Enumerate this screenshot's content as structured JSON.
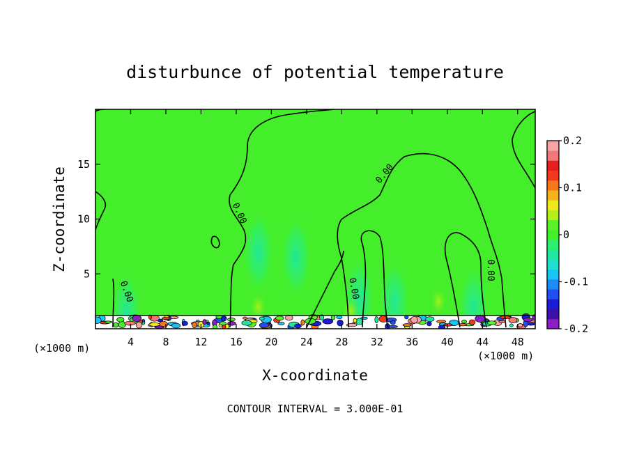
{
  "chart_data": {
    "type": "heatmap",
    "title": "disturbunce of potential temperature",
    "xlabel": "X-coordinate",
    "ylabel": "Z-coordinate",
    "x_unit_left": "(×1000 m)",
    "x_unit_right": "(×1000 m)",
    "xlim": [
      0,
      50
    ],
    "ylim": [
      0,
      20
    ],
    "x_ticks": [
      4,
      8,
      12,
      16,
      20,
      24,
      28,
      32,
      36,
      40,
      44,
      48
    ],
    "y_ticks": [
      5,
      10,
      15
    ],
    "colorbar": {
      "min": -0.2,
      "max": 0.2,
      "ticks": [
        -0.2,
        -0.1,
        0,
        0.1,
        0.2
      ],
      "tick_labels": [
        "-0.2",
        "-0.1",
        "0",
        "0.1",
        "0.2"
      ],
      "colors": [
        "#8b1fbf",
        "#3a12a8",
        "#1c1cd6",
        "#1f4ff0",
        "#1f8af5",
        "#19c4f5",
        "#1fe0d0",
        "#1fe6a0",
        "#2ef070",
        "#44ee2a",
        "#5cf028",
        "#b4f01a",
        "#f0e81a",
        "#f6b41a",
        "#f6781a",
        "#f23a1a",
        "#e61e1e",
        "#f07878",
        "#f6a4a4"
      ]
    },
    "contour_level": "0.00",
    "contour_interval_text": "CONTOUR INTERVAL = 3.000E-01",
    "background_value": 0.02,
    "features": [
      {
        "kind": "cool-patch",
        "x": 18.5,
        "z": 7.0,
        "value": -0.03
      },
      {
        "kind": "cool-patch",
        "x": 22.8,
        "z": 6.5,
        "value": -0.05
      },
      {
        "kind": "cool-patch",
        "x": 30.0,
        "z": 2.8,
        "value": -0.05
      },
      {
        "kind": "cool-patch",
        "x": 34.0,
        "z": 2.5,
        "value": -0.04
      },
      {
        "kind": "cool-patch",
        "x": 43.0,
        "z": 2.0,
        "value": -0.05
      },
      {
        "kind": "cool-patch",
        "x": 3.5,
        "z": 1.5,
        "value": -0.05
      },
      {
        "kind": "warm-patch",
        "x": 39.0,
        "z": 2.5,
        "value": 0.06
      },
      {
        "kind": "warm-patch",
        "x": 29.0,
        "z": 1.6,
        "value": 0.06
      },
      {
        "kind": "warm-patch",
        "x": 18.5,
        "z": 2.0,
        "value": 0.05
      }
    ],
    "boundary_layer": {
      "z_top": 1.2,
      "min": -0.2,
      "max": 0.2
    }
  }
}
